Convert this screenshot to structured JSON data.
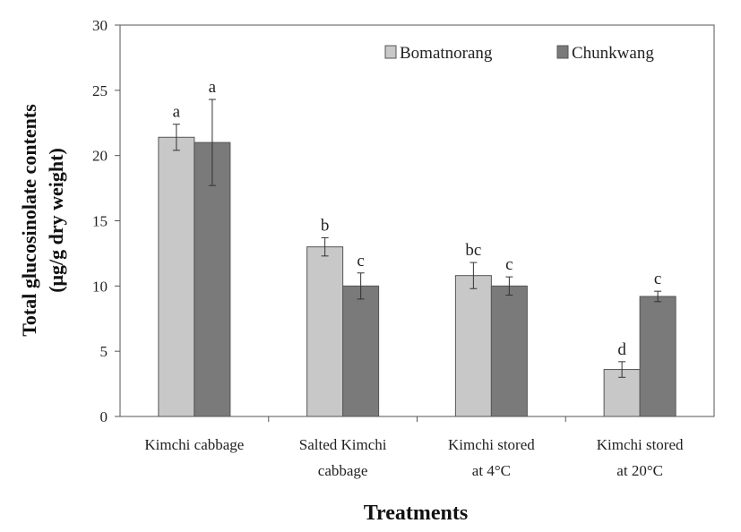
{
  "chart_data": {
    "type": "bar",
    "categories": [
      [
        "Kimchi cabbage"
      ],
      [
        "Salted Kimchi",
        "cabbage"
      ],
      [
        "Kimchi stored",
        "at 4°C"
      ],
      [
        "Kimchi stored",
        "at 20°C"
      ]
    ],
    "series": [
      {
        "name": "Bomatnorang",
        "color": "#c8c8c8",
        "values": [
          21.4,
          13.0,
          10.8,
          3.6
        ],
        "errors": [
          1.0,
          0.7,
          1.0,
          0.6
        ],
        "labels": [
          "a",
          "b",
          "bc",
          "d"
        ]
      },
      {
        "name": "Chunkwang",
        "color": "#7a7a7a",
        "values": [
          21.0,
          10.0,
          10.0,
          9.2
        ],
        "errors": [
          3.3,
          1.0,
          0.7,
          0.4
        ],
        "labels": [
          "a",
          "c",
          "c",
          "c"
        ]
      }
    ],
    "ylabel_line1": "Total glucosinolate contents",
    "ylabel_line2": "(μg/g dry weight)",
    "xlabel": "Treatments",
    "ylim": [
      0,
      30
    ],
    "yticks": [
      0,
      5,
      10,
      15,
      20,
      25,
      30
    ],
    "grid": false,
    "legend_position": "top-right"
  }
}
